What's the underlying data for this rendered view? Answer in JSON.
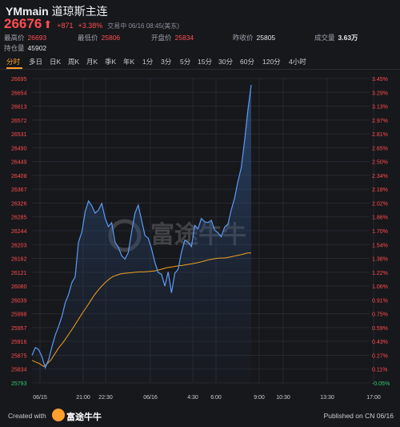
{
  "header": {
    "symbol": "YMmain",
    "name": "道琼斯主连"
  },
  "quote": {
    "price": "26676",
    "arrow": "⬆",
    "change": "+871",
    "change_pct": "+3.38%",
    "status": "交易中 06/16 08:45(美东)"
  },
  "stats": {
    "high_label": "最高价",
    "high": "26693",
    "low_label": "最低价",
    "low": "25806",
    "open_label": "开盘价",
    "open": "25834",
    "prev_label": "昨收价",
    "prev": "25805",
    "vol_label": "成交量",
    "vol": "3.63万",
    "oi_label": "持仓量",
    "oi": "45902"
  },
  "tabs": [
    "分时",
    "多日",
    "日K",
    "周K",
    "月K",
    "季K",
    "年K",
    "1分",
    "3分",
    "5分",
    "15分",
    "30分",
    "60分",
    "120分",
    "4小时"
  ],
  "active_tab": "分时",
  "watermark": "富途牛牛",
  "footer": {
    "created_with": "Created with",
    "brand": "富途牛牛",
    "published": "Published on CN 06/16"
  },
  "colors": {
    "background": "#17181c",
    "price_line": "#5b9bf5",
    "avg_line": "#f0a020",
    "up": "#ff4d4f",
    "down": "#2ecc71",
    "active_tab": "#ff9f2e"
  },
  "chart_data": {
    "type": "line",
    "title": "",
    "xlabel": "",
    "ylabel": "",
    "ylim": [
      25793,
      26695
    ],
    "y_ticks": [
      "26695",
      "26654",
      "26613",
      "26572",
      "26531",
      "26490",
      "26449",
      "26408",
      "26367",
      "26326",
      "26285",
      "26244",
      "26203",
      "26162",
      "26121",
      "26080",
      "26039",
      "25998",
      "25957",
      "25916",
      "25875",
      "25834",
      "25793"
    ],
    "pct_ticks": [
      "3.45%",
      "3.29%",
      "3.13%",
      "2.97%",
      "2.81%",
      "2.65%",
      "2.50%",
      "2.34%",
      "2.18%",
      "2.02%",
      "1.86%",
      "1.70%",
      "1.54%",
      "1.38%",
      "1.22%",
      "1.06%",
      "0.91%",
      "0.75%",
      "0.59%",
      "0.43%",
      "0.27%",
      "0.11%",
      "-0.05%"
    ],
    "x_ticks": [
      "06/15",
      "21:00",
      "22:30",
      "06/16",
      "4:30",
      "6:00",
      "9:00",
      "10:30",
      "13:30",
      "17:00"
    ],
    "grid": true,
    "series": [
      {
        "values": [
          25875,
          25898,
          25892,
          25870,
          25838,
          25862,
          25900,
          25935,
          25960,
          25990,
          26030,
          26055,
          26090,
          26108,
          26210,
          26240,
          26300,
          26332,
          26318,
          26296,
          26305,
          26325,
          26282,
          26256,
          26268,
          26210,
          26195,
          26170,
          26160,
          26180,
          26240,
          26296,
          26320,
          26275,
          26230,
          26222,
          26190,
          26150,
          26120,
          26115,
          26080,
          26122,
          26060,
          26118,
          26130,
          26180,
          26216,
          26210,
          26197,
          26260,
          26250,
          26280,
          26270,
          26268,
          26275,
          26246,
          26238,
          26226,
          26255,
          26263,
          26306,
          26340,
          26390,
          26430,
          26510,
          26600,
          26676
        ]
      },
      {
        "values": [
          25860,
          25855,
          25850,
          25842,
          25850,
          25862,
          25880,
          25898,
          25912,
          25928,
          25945,
          25962,
          25980,
          25998,
          26015,
          26032,
          26050,
          26065,
          26078,
          26090,
          26100,
          26108,
          26112,
          26116,
          26118,
          26119,
          26120,
          26121,
          26122,
          26122,
          26123,
          26124,
          26125,
          26128,
          26131,
          26134,
          26136,
          26138,
          26140,
          26141,
          26143,
          26145,
          26147,
          26149,
          26152,
          26155,
          26158,
          26160,
          26162,
          26163,
          26163,
          26165,
          26167,
          26170,
          26172,
          26175,
          26178,
          26178
        ]
      }
    ]
  }
}
